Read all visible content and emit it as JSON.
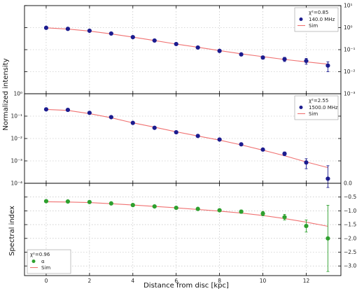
{
  "figure": {
    "ylabel_shared": "Normalized intensity",
    "xlabel": "Distance from disc [kpc]"
  },
  "chart_data": [
    {
      "type": "scatter",
      "panel": "top",
      "yscale": "log",
      "xlim": [
        -1,
        13.6
      ],
      "ylim": [
        0.001,
        10
      ],
      "grid": true,
      "xticks": [
        0,
        2,
        4,
        6,
        8,
        10,
        12
      ],
      "xtick_labels": [
        "",
        "",
        "",
        "",
        "",
        "",
        ""
      ],
      "right_yticks": [
        0.001,
        0.01,
        0.1,
        1,
        10
      ],
      "right_ytick_labels": [
        "10⁻³",
        "10⁻²",
        "10⁻¹",
        "10⁰",
        "10¹"
      ],
      "legend": {
        "placement": "upper-right",
        "chi": "χ²=0.85",
        "entries": [
          {
            "label": "140.0 MHz",
            "marker": "circle",
            "color": "#1c1c8f"
          },
          {
            "label": "Sim",
            "marker": "line",
            "color": "#f07272"
          }
        ]
      },
      "series": [
        {
          "name": "140.0 MHz",
          "color": "#1c1c8f",
          "x": [
            0,
            1,
            2,
            3,
            4,
            5,
            6,
            7,
            8,
            9,
            10,
            11,
            12,
            13
          ],
          "y": [
            0.98,
            0.88,
            0.72,
            0.54,
            0.37,
            0.26,
            0.18,
            0.125,
            0.088,
            0.061,
            0.044,
            0.037,
            0.031,
            0.019
          ],
          "yerr": [
            0.03,
            0.03,
            0.02,
            0.02,
            0.015,
            0.01,
            0.008,
            0.006,
            0.005,
            0.004,
            0.007,
            0.008,
            0.009,
            0.009
          ]
        },
        {
          "name": "Sim",
          "color": "#f07272",
          "kind": "line",
          "x": [
            0,
            1,
            2,
            3,
            4,
            5,
            6,
            7,
            8,
            9,
            10,
            11,
            12,
            13
          ],
          "y": [
            0.98,
            0.86,
            0.7,
            0.52,
            0.37,
            0.26,
            0.18,
            0.128,
            0.091,
            0.065,
            0.048,
            0.036,
            0.028,
            0.022
          ]
        }
      ]
    },
    {
      "type": "scatter",
      "panel": "middle",
      "yscale": "log",
      "xlim": [
        -1,
        13.6
      ],
      "ylim": [
        0.0001,
        1
      ],
      "grid": true,
      "xticks": [
        0,
        2,
        4,
        6,
        8,
        10,
        12
      ],
      "xtick_labels": [
        "",
        "",
        "",
        "",
        "",
        "",
        ""
      ],
      "left_yticks": [
        0.0001,
        0.001,
        0.01,
        0.1,
        1
      ],
      "left_ytick_labels": [
        "10⁻⁴",
        "10⁻³",
        "10⁻²",
        "10⁻¹",
        "10⁰"
      ],
      "legend": {
        "placement": "upper-right",
        "chi": "χ²=2.55",
        "entries": [
          {
            "label": "1500.0 MHz",
            "marker": "circle",
            "color": "#1c1c8f"
          },
          {
            "label": "Sim",
            "marker": "line",
            "color": "#f07272"
          }
        ]
      },
      "series": [
        {
          "name": "1500.0 MHz",
          "color": "#1c1c8f",
          "x": [
            0,
            1,
            2,
            3,
            4,
            5,
            6,
            7,
            8,
            9,
            10,
            11,
            12,
            13
          ],
          "y": [
            0.2,
            0.19,
            0.14,
            0.09,
            0.05,
            0.03,
            0.019,
            0.013,
            0.009,
            0.0055,
            0.0032,
            0.0021,
            0.00085,
            0.00016
          ],
          "yerr_low": [
            0.01,
            0.01,
            0.008,
            0.005,
            0.003,
            0.002,
            0.0015,
            0.001,
            0.0007,
            0.0005,
            0.0004,
            0.0004,
            0.0004,
            9.5e-05
          ],
          "yerr_high": [
            0.01,
            0.01,
            0.008,
            0.005,
            0.003,
            0.002,
            0.0015,
            0.001,
            0.0007,
            0.0005,
            0.0004,
            0.0004,
            0.0004,
            0.00045
          ]
        },
        {
          "name": "Sim",
          "color": "#f07272",
          "kind": "line",
          "x": [
            0,
            1,
            2,
            3,
            4,
            5,
            6,
            7,
            8,
            9,
            10,
            11,
            12,
            13
          ],
          "y": [
            0.2,
            0.18,
            0.13,
            0.085,
            0.05,
            0.032,
            0.02,
            0.013,
            0.0085,
            0.0052,
            0.003,
            0.0017,
            0.0009,
            0.0005
          ]
        }
      ]
    },
    {
      "type": "scatter",
      "panel": "bottom",
      "yscale": "linear",
      "xlim": [
        -1,
        13.6
      ],
      "ylim": [
        -3.35,
        0.0
      ],
      "grid": true,
      "xticks": [
        0,
        2,
        4,
        6,
        8,
        10,
        12
      ],
      "xtick_labels": [
        "0",
        "2",
        "4",
        "6",
        "8",
        "10",
        "12"
      ],
      "ylabel": "Spectral index",
      "right_yticks": [
        0.0,
        -0.5,
        -1.0,
        -1.5,
        -2.0,
        -2.5,
        -3.0
      ],
      "right_ytick_labels": [
        "0.0",
        "−0.5",
        "−1.0",
        "−1.5",
        "−2.0",
        "−2.5",
        "−3.0"
      ],
      "legend": {
        "placement": "lower-left",
        "chi": "χ²=0.96",
        "entries": [
          {
            "label": "α",
            "marker": "circle",
            "color": "#2ea02e"
          },
          {
            "label": "Sim",
            "marker": "line",
            "color": "#f07272"
          }
        ]
      },
      "series": [
        {
          "name": "α",
          "color": "#2ea02e",
          "x": [
            0,
            1,
            2,
            3,
            4,
            5,
            6,
            7,
            8,
            9,
            10,
            11,
            12,
            13
          ],
          "y": [
            -0.65,
            -0.66,
            -0.68,
            -0.73,
            -0.79,
            -0.84,
            -0.89,
            -0.93,
            -0.98,
            -1.03,
            -1.1,
            -1.23,
            -1.55,
            -2.0
          ],
          "yerr": [
            0.02,
            0.02,
            0.02,
            0.03,
            0.03,
            0.03,
            0.03,
            0.04,
            0.04,
            0.06,
            0.08,
            0.1,
            0.22,
            1.2
          ]
        },
        {
          "name": "Sim",
          "color": "#f07272",
          "kind": "line",
          "x": [
            0,
            1,
            2,
            3,
            4,
            5,
            6,
            7,
            8,
            9,
            10,
            11,
            12,
            13
          ],
          "y": [
            -0.67,
            -0.68,
            -0.7,
            -0.74,
            -0.79,
            -0.84,
            -0.89,
            -0.95,
            -1.01,
            -1.08,
            -1.17,
            -1.28,
            -1.41,
            -1.56
          ]
        }
      ]
    }
  ]
}
